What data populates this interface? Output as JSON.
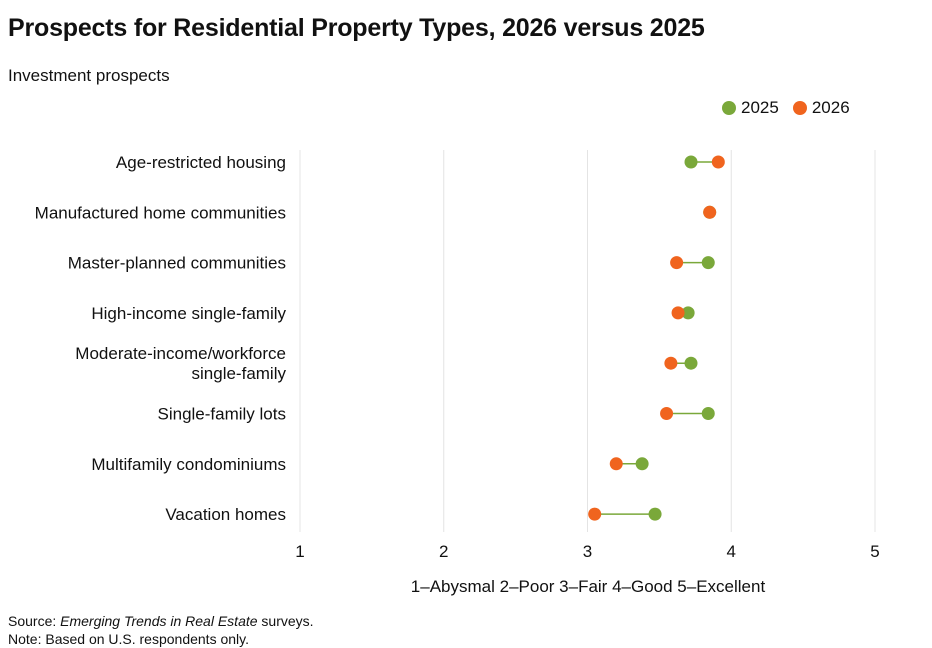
{
  "title": "Prospects for Residential Property Types, 2026 versus 2025",
  "subtitle": "Investment prospects",
  "source_prefix": "Source: ",
  "source_italic": "Emerging Trends in Real Estate",
  "source_suffix": " surveys.",
  "note": "Note: Based on U.S. respondents only.",
  "colors": {
    "y2025": "#7aa83a",
    "y2026": "#f0641e",
    "grid": "#e4e4e4",
    "connector": "#7aa83a"
  },
  "chart_data": {
    "type": "dot-plot",
    "categories": [
      "Age-restricted housing",
      "Manufactured home communities",
      "Master-planned communities",
      "High-income single-family",
      "Moderate-income/workforce single-family",
      "Single-family lots",
      "Multifamily condominiums",
      "Vacation homes"
    ],
    "category_lines": [
      [
        "Age-restricted housing"
      ],
      [
        "Manufactured home communities"
      ],
      [
        "Master-planned communities"
      ],
      [
        "High-income single-family"
      ],
      [
        "Moderate-income/workforce",
        "single-family"
      ],
      [
        "Single-family lots"
      ],
      [
        "Multifamily condominiums"
      ],
      [
        "Vacation homes"
      ]
    ],
    "series": [
      {
        "name": "2025",
        "values": [
          3.72,
          3.85,
          3.84,
          3.7,
          3.72,
          3.84,
          3.38,
          3.47
        ]
      },
      {
        "name": "2026",
        "values": [
          3.91,
          3.85,
          3.62,
          3.63,
          3.58,
          3.55,
          3.2,
          3.05
        ]
      }
    ],
    "xlim": [
      1,
      5
    ],
    "xticks": [
      1,
      2,
      3,
      4,
      5
    ],
    "xlabel": "1–Abysmal 2–Poor 3–Fair 4–Good 5–Excellent",
    "legend": "top-right",
    "grid": true
  }
}
